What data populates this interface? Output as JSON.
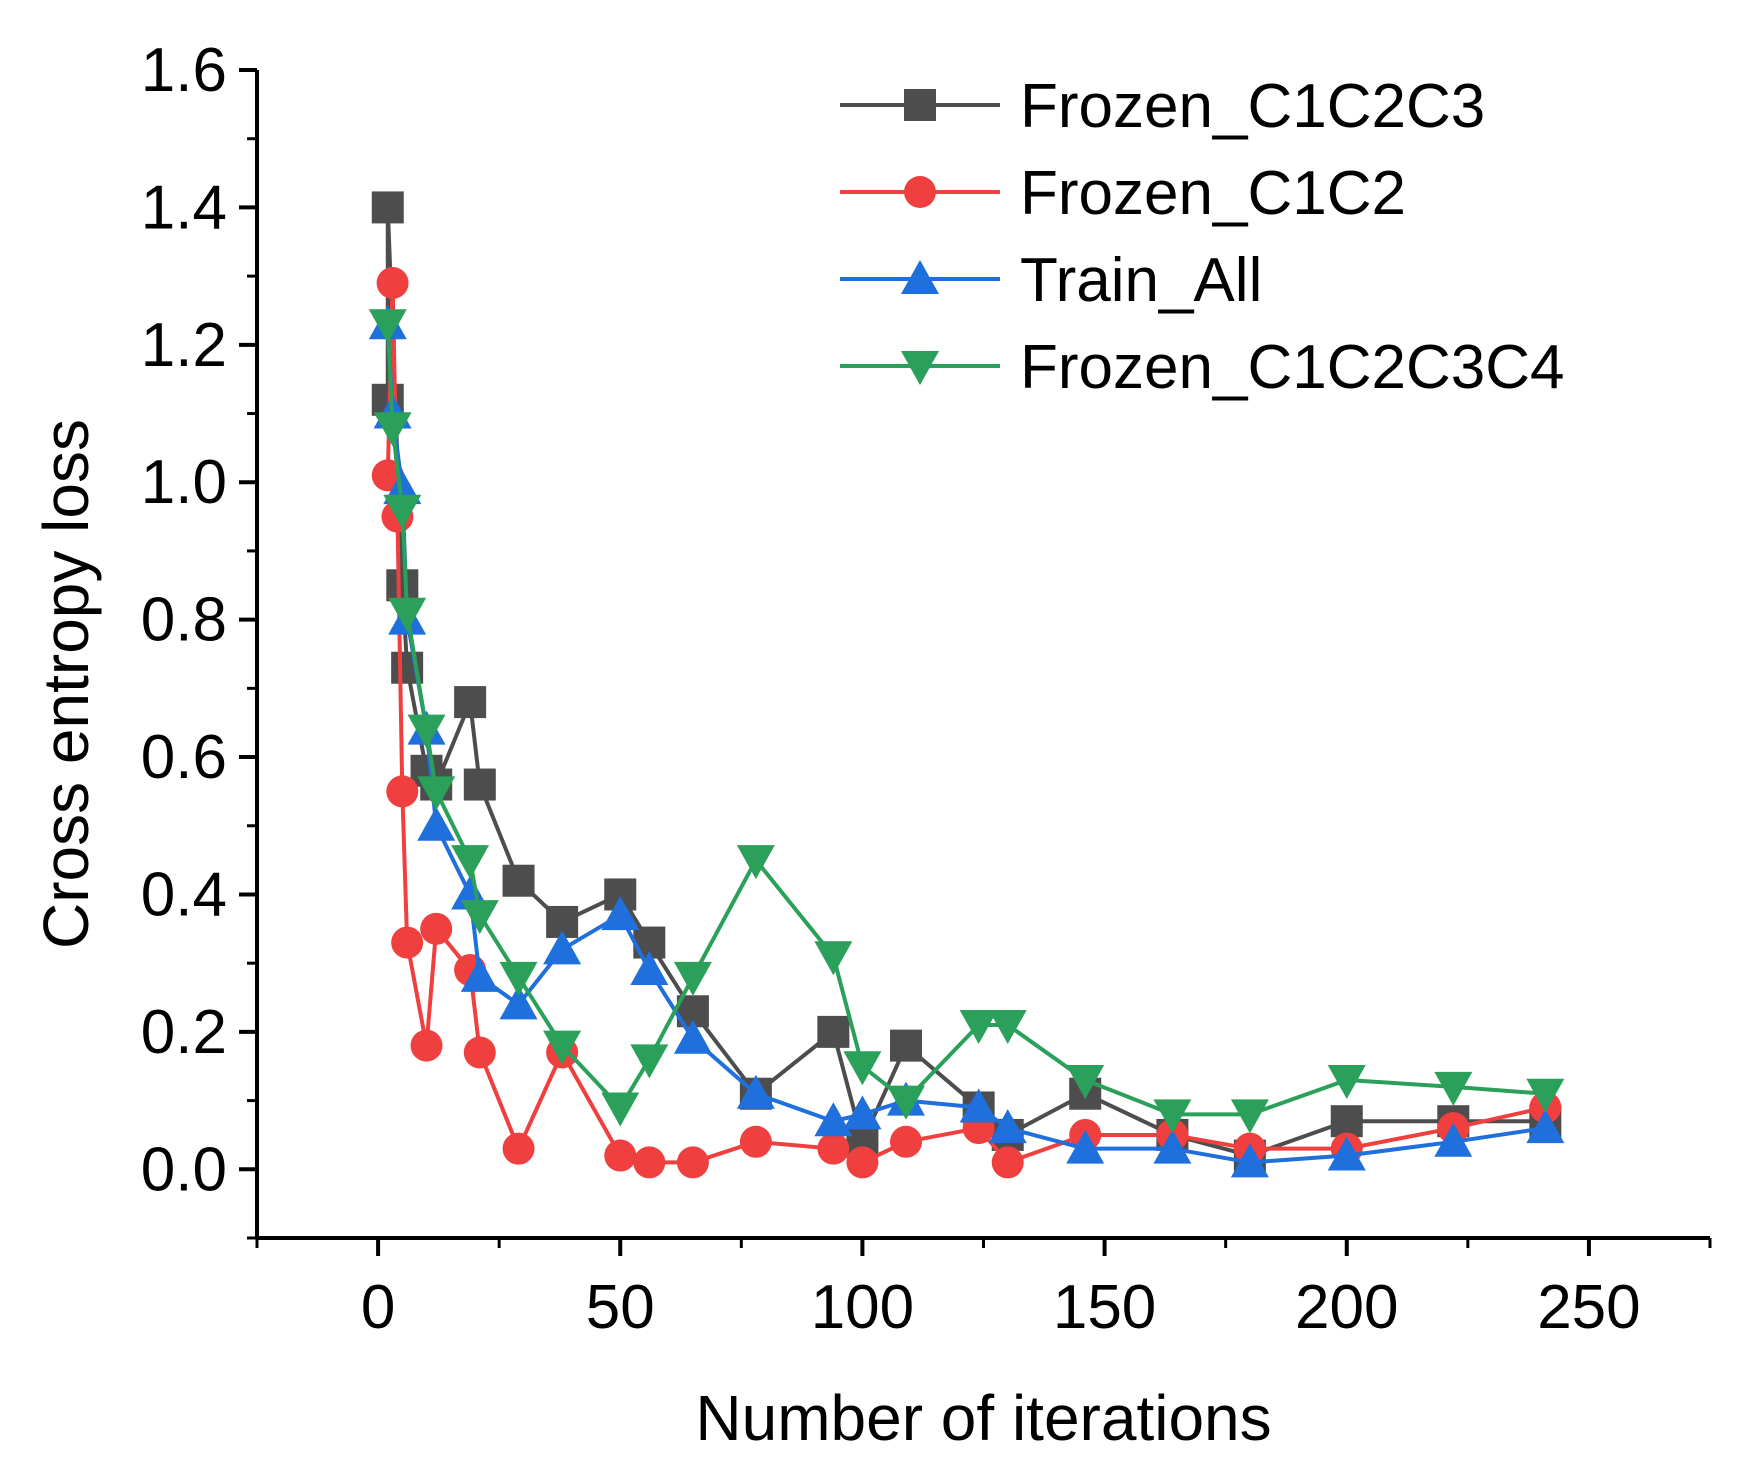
{
  "chart_data": {
    "type": "line",
    "title": "",
    "xlabel": "Number of iterations",
    "ylabel": "Cross entropy loss",
    "xlim": [
      -25,
      275
    ],
    "ylim": [
      -0.1,
      1.6
    ],
    "xticks": [
      0,
      50,
      100,
      150,
      200,
      250
    ],
    "xtick_labels": [
      "0",
      "50",
      "100",
      "150",
      "200",
      "250"
    ],
    "yticks": [
      0.0,
      0.2,
      0.4,
      0.6,
      0.8,
      1.0,
      1.2,
      1.4,
      1.6
    ],
    "ytick_labels": [
      "0.0",
      "0.2",
      "0.4",
      "0.6",
      "0.8",
      "1.0",
      "1.2",
      "1.4",
      "1.6"
    ],
    "grid": false,
    "legend_position": "top-right",
    "series": [
      {
        "name": "Frozen_C1C2C3",
        "color": "#4d4d4d",
        "marker": "square",
        "x": [
          2,
          2,
          5,
          6,
          10,
          12,
          19,
          21,
          29,
          38,
          50,
          56,
          65,
          78,
          94,
          100,
          109,
          124,
          130,
          146,
          164,
          180,
          200,
          222,
          241
        ],
        "y": [
          1.12,
          1.4,
          0.85,
          0.73,
          0.58,
          0.56,
          0.68,
          0.56,
          0.42,
          0.36,
          0.4,
          0.33,
          0.23,
          0.11,
          0.2,
          0.04,
          0.18,
          0.09,
          0.05,
          0.11,
          0.05,
          0.02,
          0.07,
          0.07,
          0.07
        ]
      },
      {
        "name": "Frozen_C1C2",
        "color": "#ef3f3f",
        "marker": "circle",
        "x": [
          2,
          3,
          4,
          5,
          6,
          10,
          12,
          19,
          21,
          29,
          38,
          50,
          56,
          65,
          78,
          94,
          100,
          109,
          124,
          130,
          146,
          164,
          180,
          200,
          222,
          241
        ],
        "y": [
          1.01,
          1.29,
          0.95,
          0.55,
          0.33,
          0.18,
          0.35,
          0.29,
          0.17,
          0.03,
          0.17,
          0.02,
          0.01,
          0.01,
          0.04,
          0.03,
          0.01,
          0.04,
          0.06,
          0.01,
          0.05,
          0.05,
          0.03,
          0.03,
          0.06,
          0.09
        ]
      },
      {
        "name": "Train_All",
        "color": "#1f6fdc",
        "marker": "triangle-up",
        "x": [
          2,
          3,
          5,
          6,
          10,
          12,
          19,
          21,
          29,
          38,
          50,
          56,
          65,
          78,
          94,
          100,
          109,
          124,
          130,
          146,
          164,
          180,
          200,
          222,
          241
        ],
        "y": [
          1.23,
          1.1,
          0.99,
          0.8,
          0.64,
          0.5,
          0.4,
          0.28,
          0.24,
          0.32,
          0.37,
          0.29,
          0.19,
          0.11,
          0.07,
          0.08,
          0.1,
          0.09,
          0.06,
          0.03,
          0.03,
          0.01,
          0.02,
          0.04,
          0.06
        ]
      },
      {
        "name": "Frozen_C1C2C3C4",
        "color": "#2aa05a",
        "marker": "triangle-down",
        "x": [
          2,
          3,
          5,
          6,
          10,
          12,
          19,
          21,
          29,
          38,
          50,
          56,
          65,
          78,
          94,
          100,
          109,
          124,
          130,
          146,
          164,
          180,
          200,
          222,
          241
        ],
        "y": [
          1.23,
          1.08,
          0.96,
          0.81,
          0.64,
          0.55,
          0.45,
          0.37,
          0.28,
          0.18,
          0.09,
          0.16,
          0.28,
          0.45,
          0.31,
          0.15,
          0.1,
          0.21,
          0.21,
          0.13,
          0.08,
          0.08,
          0.13,
          0.12,
          0.11
        ]
      }
    ]
  }
}
